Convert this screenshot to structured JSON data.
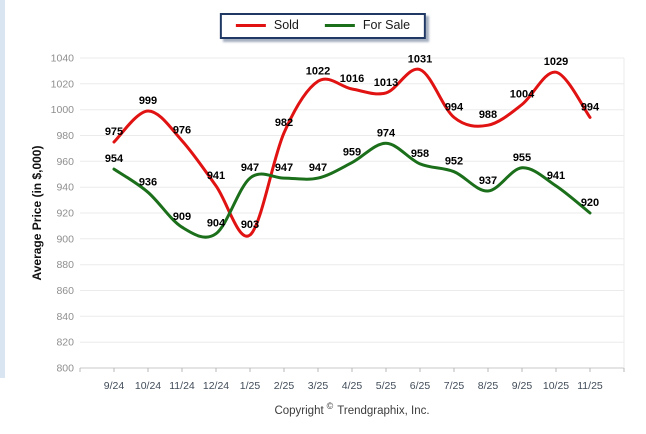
{
  "chart_data": {
    "type": "line",
    "x": [
      "9/24",
      "10/24",
      "11/24",
      "12/24",
      "1/25",
      "2/25",
      "3/25",
      "4/25",
      "5/25",
      "6/25",
      "7/25",
      "8/25",
      "9/25",
      "10/25",
      "11/25"
    ],
    "series": [
      {
        "name": "Sold",
        "color": "#e11212",
        "values": [
          975,
          999,
          976,
          941,
          903,
          982,
          1022,
          1016,
          1013,
          1031,
          994,
          988,
          1004,
          1029,
          994
        ]
      },
      {
        "name": "For Sale",
        "color": "#1b6f1b",
        "values": [
          954,
          936,
          909,
          904,
          947,
          947,
          947,
          959,
          974,
          958,
          952,
          937,
          955,
          941,
          920
        ]
      }
    ],
    "title": "",
    "xlabel": "",
    "ylabel": "Average Price (in $,000)",
    "ylim": [
      800,
      1040
    ],
    "ytick_step": 20,
    "grid": "horizontal",
    "legend_position": "top-center",
    "smooth": true,
    "show_data_labels": true
  },
  "footer": {
    "copyright_prefix": "Copyright",
    "copyright_symbol": "©",
    "copyright_suffix": " Trendgraphix, Inc."
  },
  "colors": {
    "grid": "#ebebeb",
    "axis": "#c9c9c9",
    "tick": "#b9b9b9",
    "y_tick_label": "#8f8f8f",
    "x_tick_label": "#414c59",
    "data_label": "#000000",
    "legend_border": "#203864",
    "left_strip": "#d9e5f1"
  }
}
